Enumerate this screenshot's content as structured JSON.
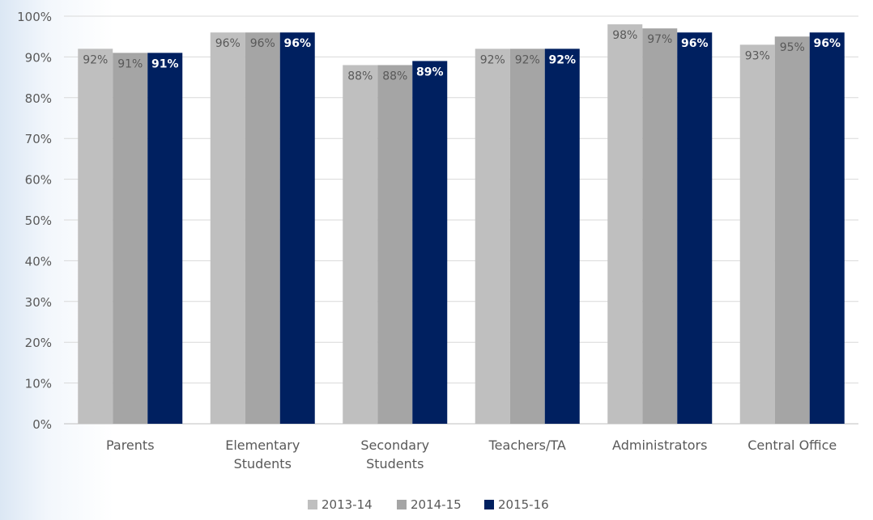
{
  "chart_data": {
    "type": "bar",
    "title": "",
    "xlabel": "",
    "ylabel": "",
    "categories": [
      [
        "Parents"
      ],
      [
        "Elementary",
        "Students"
      ],
      [
        "Secondary",
        "Students"
      ],
      [
        "Teachers/TA"
      ],
      [
        "Administrators"
      ],
      [
        "Central Office"
      ]
    ],
    "series": [
      {
        "name": "2013-14",
        "color": "#bfbfbf",
        "label_color": "#595959",
        "label_bold": false,
        "values": [
          92,
          96,
          88,
          92,
          98,
          93
        ]
      },
      {
        "name": "2014-15",
        "color": "#a5a5a5",
        "label_color": "#595959",
        "label_bold": false,
        "values": [
          91,
          96,
          88,
          92,
          97,
          95
        ]
      },
      {
        "name": "2015-16",
        "color": "#002060",
        "label_color": "#ffffff",
        "label_bold": true,
        "values": [
          91,
          96,
          89,
          92,
          96,
          96
        ]
      }
    ],
    "data_labels": [
      [
        "92%",
        "96%",
        "88%",
        "92%",
        "98%",
        "93%"
      ],
      [
        "91%",
        "96%",
        "88%",
        "92%",
        "97%",
        "95%"
      ],
      [
        "91%",
        "96%",
        "89%",
        "92%",
        "96%",
        "96%"
      ]
    ],
    "y_ticks": [
      0,
      10,
      20,
      30,
      40,
      50,
      60,
      70,
      80,
      90,
      100
    ],
    "y_tick_labels": [
      "0%",
      "10%",
      "20%",
      "30%",
      "40%",
      "50%",
      "60%",
      "70%",
      "80%",
      "90%",
      "100%"
    ],
    "ylim": [
      0,
      100
    ],
    "grid": true,
    "legend_position": "bottom-center",
    "colors": {
      "axis_text": "#595959",
      "gridline": "#d9d9d9"
    }
  }
}
